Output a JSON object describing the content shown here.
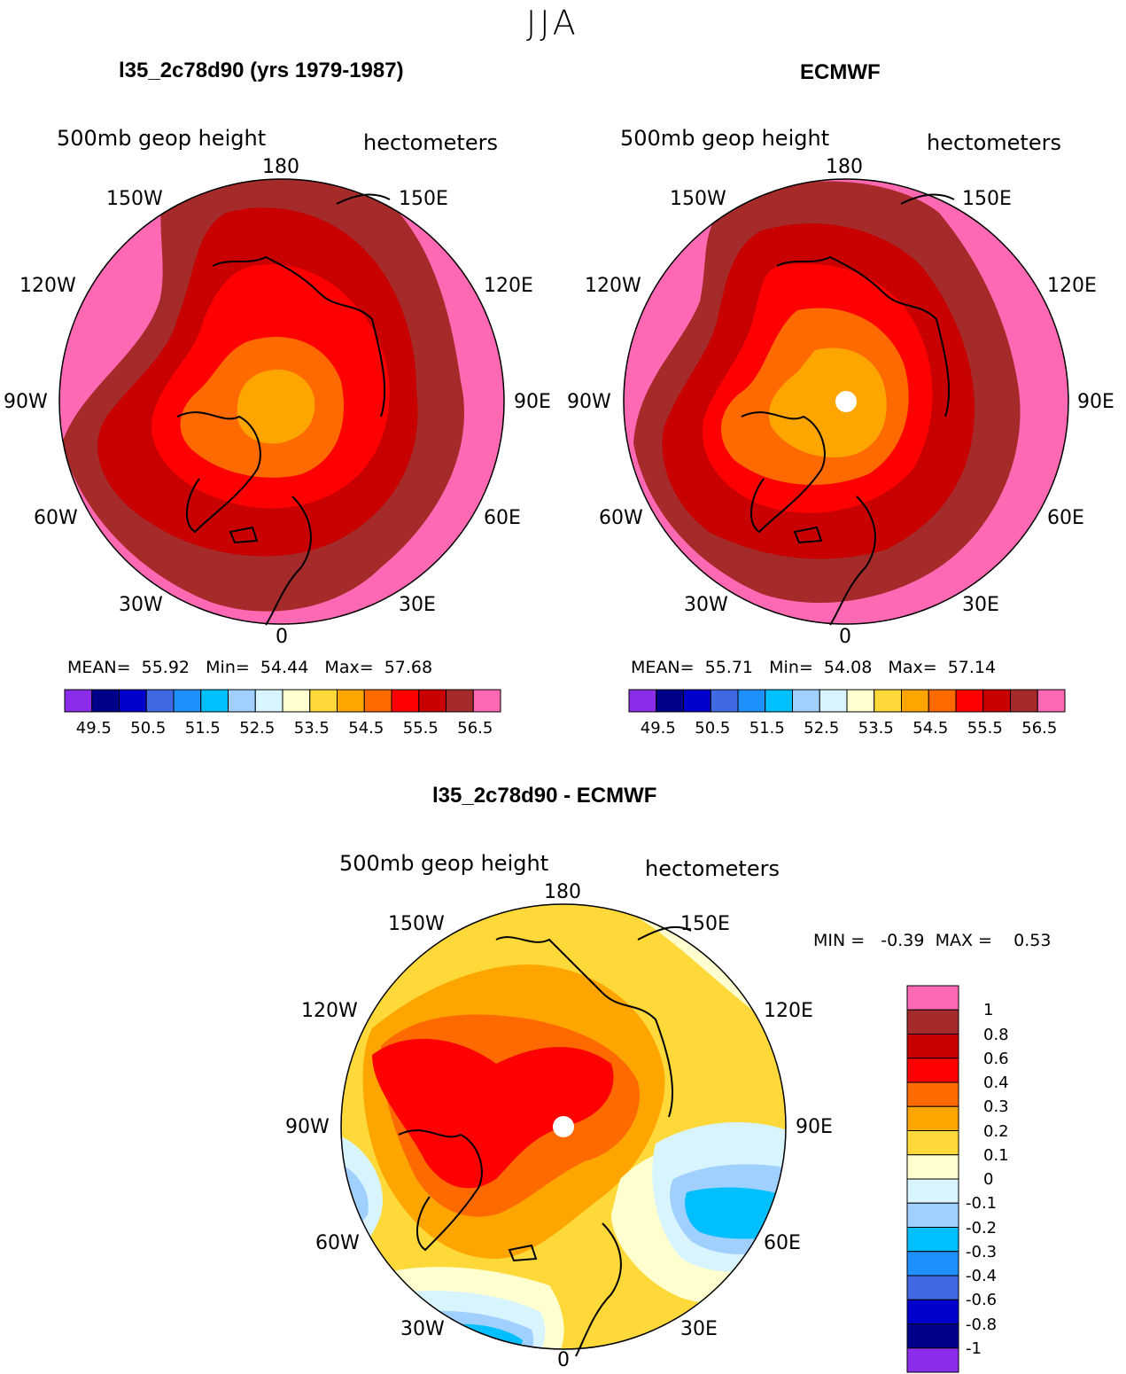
{
  "season": "JJA",
  "panels": [
    {
      "id": "model",
      "title": "l35_2c78d90 (yrs 1979-1987)",
      "variable": "500mb  geop height",
      "units": "hectometers",
      "lon_labels": {
        "n": "180",
        "nw": "150W",
        "ne": "150E",
        "w2": "120W",
        "e2": "120E",
        "w": "90W",
        "e": "90E",
        "sw2": "60W",
        "se2": "60E",
        "sw": "30W",
        "se": "30E",
        "s": "0"
      },
      "stats": {
        "mean_label": "MEAN=",
        "mean": "55.92",
        "min_label": "Min=",
        "min": "54.44",
        "max_label": "Max=",
        "max": "57.68"
      },
      "colorbar": {
        "colors": [
          "#8b2ce8",
          "#00008b",
          "#0000cd",
          "#4169e1",
          "#1e90ff",
          "#00bfff",
          "#a0d0ff",
          "#d8f4ff",
          "#ffffd0",
          "#ffd93a",
          "#ffa500",
          "#ff6a00",
          "#ff0000",
          "#c80000",
          "#a52a2a",
          "#ff69b4"
        ],
        "ticks": [
          "49.5",
          "50.5",
          "51.5",
          "52.5",
          "53.5",
          "54.5",
          "55.5",
          "56.5"
        ]
      }
    },
    {
      "id": "obs",
      "title": "ECMWF",
      "variable": "500mb  geop height",
      "units": "hectometers",
      "lon_labels": {
        "n": "180",
        "nw": "150W",
        "ne": "150E",
        "w2": "120W",
        "e2": "120E",
        "w": "90W",
        "e": "90E",
        "sw2": "60W",
        "se2": "60E",
        "sw": "30W",
        "se": "30E",
        "s": "0"
      },
      "stats": {
        "mean_label": "MEAN=",
        "mean": "55.71",
        "min_label": "Min=",
        "min": "54.08",
        "max_label": "Max=",
        "max": "57.14"
      },
      "colorbar": {
        "colors": [
          "#8b2ce8",
          "#00008b",
          "#0000cd",
          "#4169e1",
          "#1e90ff",
          "#00bfff",
          "#a0d0ff",
          "#d8f4ff",
          "#ffffd0",
          "#ffd93a",
          "#ffa500",
          "#ff6a00",
          "#ff0000",
          "#c80000",
          "#a52a2a",
          "#ff69b4"
        ],
        "ticks": [
          "49.5",
          "50.5",
          "51.5",
          "52.5",
          "53.5",
          "54.5",
          "55.5",
          "56.5"
        ]
      }
    },
    {
      "id": "diff",
      "title": "l35_2c78d90 - ECMWF",
      "variable": "500mb  geop height",
      "units": "hectometers",
      "lon_labels": {
        "n": "180",
        "nw": "150W",
        "ne": "150E",
        "w2": "120W",
        "e2": "120E",
        "w": "90W",
        "e": "90E",
        "sw2": "60W",
        "se2": "60E",
        "sw": "30W",
        "se": "30E",
        "s": "0"
      },
      "stats": {
        "min_label": "MIN =",
        "min": "-0.39",
        "max_label": "MAX =",
        "max": "0.53"
      },
      "colorbar": {
        "colors": [
          "#ff69b4",
          "#a52a2a",
          "#c80000",
          "#ff0000",
          "#ff6a00",
          "#ffa500",
          "#ffd93a",
          "#ffffd0",
          "#d8f4ff",
          "#a0d0ff",
          "#00bfff",
          "#1e90ff",
          "#4169e1",
          "#0000cd",
          "#00008b",
          "#8b2ce8"
        ],
        "ticks": [
          "1",
          "0.8",
          "0.6",
          "0.4",
          "0.3",
          "0.2",
          "0.1",
          "0",
          "-0.1",
          "-0.2",
          "-0.3",
          "-0.4",
          "-0.6",
          "-0.8",
          "-1"
        ]
      }
    }
  ]
}
